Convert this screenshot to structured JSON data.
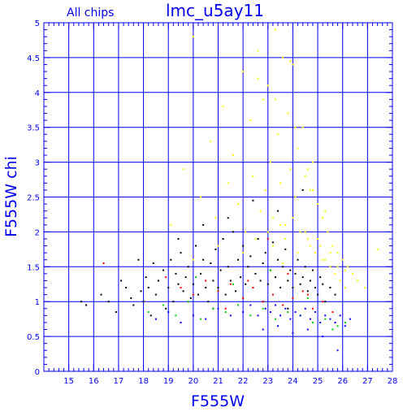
{
  "chart_data": {
    "type": "scatter",
    "title": "lmc_u5ay11",
    "subtitle": "All chips",
    "xlabel": "F555W",
    "ylabel": "F555W chi",
    "xlim": [
      14,
      28
    ],
    "ylim": [
      0,
      5
    ],
    "x_ticks": [
      15,
      16,
      17,
      18,
      19,
      20,
      21,
      22,
      23,
      24,
      25,
      26,
      27,
      28
    ],
    "y_ticks": [
      0,
      0.5,
      1,
      1.5,
      2,
      2.5,
      3,
      3.5,
      4,
      4.5,
      5
    ],
    "grid": true,
    "legend": "none",
    "axis_color": "#0000ee",
    "series": [
      {
        "color": "#000000",
        "description_of_distribution": "",
        "x": [
          15.5,
          15.7,
          16.3,
          16.6,
          16.9,
          17.1,
          17.3,
          17.5,
          17.6,
          17.8,
          17.9,
          18.0,
          18.1,
          18.2,
          18.3,
          18.4,
          18.5,
          18.6,
          18.8,
          18.9,
          19.0,
          19.1,
          19.2,
          19.3,
          19.4,
          19.5,
          19.6,
          19.7,
          19.8,
          19.9,
          20.0,
          20.1,
          20.2,
          20.3,
          20.4,
          20.5,
          20.6,
          20.7,
          20.8,
          20.9,
          21.0,
          21.1,
          21.2,
          21.3,
          21.4,
          21.5,
          21.6,
          21.7,
          21.8,
          21.9,
          22.0,
          22.1,
          22.2,
          22.3,
          22.4,
          22.5,
          22.6,
          22.7,
          22.8,
          22.9,
          23.0,
          23.1,
          23.2,
          23.3,
          23.4,
          23.5,
          23.6,
          23.7,
          23.8,
          23.9,
          24.0,
          24.1,
          24.2,
          24.3,
          24.4,
          24.5,
          24.6,
          24.7,
          24.8,
          24.9,
          25.0,
          25.1,
          25.2,
          25.3,
          25.5,
          25.7,
          19.4,
          20.4,
          21.4,
          22.4,
          23.4,
          21.8,
          22.8,
          23.8,
          20.8,
          24.4
        ],
        "y": [
          1.0,
          0.95,
          1.1,
          1.0,
          0.85,
          1.3,
          1.2,
          1.05,
          0.95,
          1.6,
          1.15,
          1.0,
          1.35,
          1.2,
          0.8,
          1.55,
          1.1,
          1.3,
          1.45,
          0.9,
          1.2,
          1.6,
          1.0,
          1.4,
          1.25,
          1.7,
          1.15,
          1.35,
          1.5,
          1.05,
          1.25,
          1.8,
          1.1,
          1.4,
          1.6,
          1.2,
          1.0,
          1.55,
          1.3,
          1.75,
          1.2,
          1.45,
          1.9,
          1.1,
          1.5,
          1.3,
          2.0,
          1.15,
          1.6,
          1.35,
          1.8,
          1.25,
          1.5,
          1.65,
          1.2,
          1.4,
          1.9,
          1.3,
          1.55,
          1.7,
          1.25,
          1.45,
          1.85,
          1.35,
          1.6,
          1.2,
          1.5,
          1.75,
          1.3,
          1.45,
          1.2,
          1.4,
          1.6,
          1.25,
          1.35,
          1.5,
          1.15,
          1.3,
          1.45,
          1.2,
          1.1,
          1.35,
          1.25,
          1.0,
          1.2,
          1.1,
          1.9,
          2.1,
          2.2,
          2.45,
          2.3,
          0.95,
          1.0,
          0.9,
          0.9,
          2.6
        ]
      },
      {
        "color": "#ffff00",
        "description_of_distribution": "",
        "x": [
          19.1,
          19.6,
          20.0,
          20.3,
          20.7,
          20.9,
          21.2,
          21.4,
          21.6,
          21.8,
          22.0,
          22.1,
          22.3,
          22.4,
          22.6,
          22.7,
          22.8,
          22.9,
          23.0,
          23.1,
          23.2,
          23.3,
          23.4,
          23.5,
          23.6,
          23.7,
          23.8,
          23.9,
          24.0,
          24.1,
          24.2,
          24.3,
          24.4,
          24.5,
          24.6,
          24.7,
          24.8,
          24.9,
          25.0,
          25.1,
          25.2,
          25.3,
          25.4,
          25.5,
          25.6,
          25.7,
          25.8,
          25.9,
          26.0,
          26.1,
          26.2,
          26.4,
          26.6,
          26.9,
          27.4,
          20.0,
          21.0,
          22.0,
          22.5,
          23.0,
          23.2,
          23.5,
          23.7,
          24.0,
          24.2,
          24.5,
          24.7,
          25.0,
          25.2,
          25.5,
          25.8,
          26.1,
          22.6,
          23.3,
          23.9,
          24.6,
          25.3,
          24.1,
          24.8,
          23.6
        ],
        "y": [
          2.1,
          2.9,
          4.8,
          2.5,
          3.3,
          2.2,
          3.8,
          2.7,
          3.1,
          2.4,
          4.3,
          2.0,
          3.6,
          2.8,
          4.6,
          2.3,
          3.9,
          2.6,
          4.1,
          3.0,
          2.2,
          4.9,
          3.4,
          2.7,
          4.5,
          2.1,
          3.7,
          2.9,
          4.4,
          2.5,
          3.2,
          2.0,
          3.5,
          2.8,
          1.9,
          2.6,
          3.0,
          1.7,
          2.4,
          1.8,
          2.2,
          1.6,
          2.0,
          1.5,
          1.8,
          1.4,
          1.7,
          1.3,
          1.6,
          1.2,
          1.5,
          1.4,
          1.3,
          1.2,
          1.75,
          1.6,
          1.8,
          1.7,
          1.9,
          2.0,
          1.8,
          2.1,
          1.9,
          2.2,
          1.7,
          2.0,
          1.8,
          1.9,
          1.6,
          1.7,
          1.5,
          1.45,
          4.2,
          3.9,
          4.45,
          2.9,
          2.3,
          3.5,
          2.6,
          1.55
        ]
      },
      {
        "color": "#ff0000",
        "description_of_distribution": "",
        "x": [
          16.4,
          18.9,
          19.5,
          20.0,
          20.5,
          21.0,
          21.5,
          22.0,
          22.4,
          22.8,
          23.2,
          23.6,
          24.0,
          24.4,
          24.8,
          25.2,
          25.6,
          21.3,
          22.2,
          23.0,
          23.8,
          24.6
        ],
        "y": [
          1.55,
          1.35,
          1.2,
          1.1,
          1.3,
          1.15,
          1.25,
          1.05,
          1.2,
          1.0,
          1.1,
          0.95,
          1.05,
          1.15,
          0.9,
          1.0,
          0.85,
          0.9,
          1.3,
          1.9,
          1.4,
          1.1
        ]
      },
      {
        "color": "#00cc00",
        "description_of_distribution": "",
        "x": [
          18.2,
          18.8,
          19.3,
          19.8,
          20.3,
          20.8,
          21.3,
          21.8,
          22.3,
          22.8,
          23.3,
          23.8,
          24.3,
          24.8,
          25.3,
          25.8,
          26.1,
          20.1,
          21.6,
          23.1,
          24.6,
          25.6
        ],
        "y": [
          0.85,
          0.95,
          0.8,
          1.0,
          0.75,
          0.9,
          0.85,
          0.95,
          0.8,
          0.9,
          0.75,
          0.85,
          0.8,
          0.7,
          0.75,
          0.65,
          0.7,
          1.35,
          1.25,
          1.45,
          1.05,
          0.6
        ]
      },
      {
        "color": "#0000ff",
        "description_of_distribution": "",
        "x": [
          18.5,
          19.0,
          19.5,
          20.0,
          20.5,
          21.0,
          21.5,
          22.0,
          22.3,
          22.6,
          22.9,
          23.1,
          23.3,
          23.5,
          23.7,
          23.9,
          24.1,
          24.3,
          24.5,
          24.7,
          24.9,
          25.1,
          25.3,
          25.5,
          25.7,
          25.9,
          26.1,
          26.3,
          22.8,
          23.4,
          24.0,
          24.6,
          25.2,
          25.8
        ],
        "y": [
          0.75,
          0.85,
          0.7,
          0.8,
          0.75,
          0.9,
          0.8,
          0.85,
          0.95,
          0.8,
          0.9,
          0.85,
          0.95,
          0.8,
          0.9,
          0.75,
          0.85,
          0.8,
          0.9,
          0.75,
          0.85,
          0.7,
          0.8,
          0.75,
          0.7,
          0.8,
          0.65,
          0.75,
          0.6,
          0.65,
          0.55,
          0.6,
          0.5,
          0.3
        ]
      }
    ]
  }
}
